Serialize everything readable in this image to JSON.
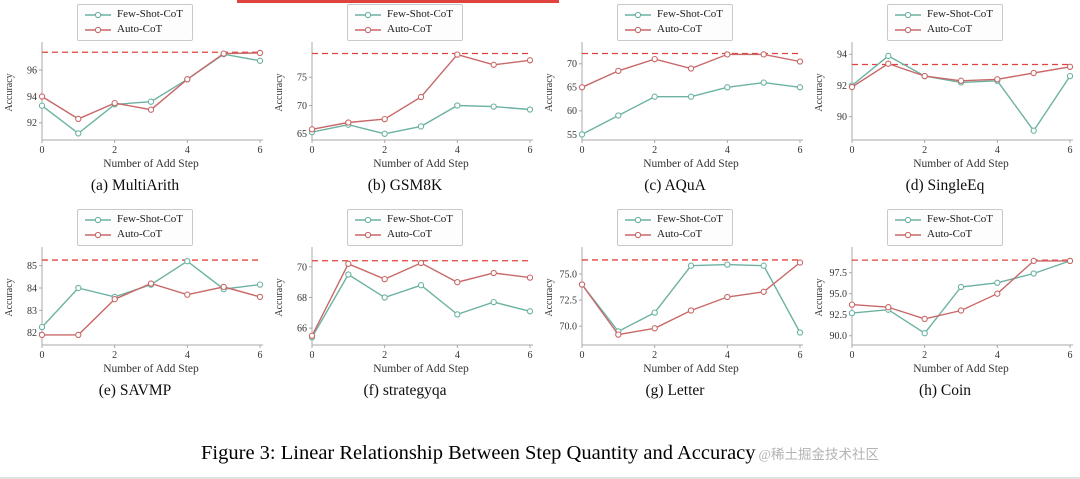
{
  "figure": {
    "caption": "Figure 3: Linear Relationship Between Step Quantity and Accuracy",
    "watermark": "@稀土掘金技术社区"
  },
  "axes": {
    "xlabel": "Number of Add Step",
    "ylabel": "Accuracy",
    "xticks": [
      0,
      2,
      4,
      6
    ]
  },
  "legend": {
    "series": [
      {
        "name": "Few-Shot-CoT",
        "color": "#6cb2a2"
      },
      {
        "name": "Auto-CoT",
        "color": "#c96868"
      }
    ]
  },
  "style": {
    "dashed_color": "#e0433c",
    "spine_color": "#a8a8a8",
    "topline_color": "#e0433c"
  },
  "chart_data": [
    {
      "type": "line",
      "title": "(a) MultiArith",
      "x": [
        0,
        1,
        2,
        3,
        4,
        5,
        6
      ],
      "ylim": [
        90.7,
        97.9
      ],
      "yticks": [
        92,
        94,
        96
      ],
      "ytick_labels": [
        "92",
        "94",
        "96"
      ],
      "dashed_line_y": 97.35,
      "series": [
        {
          "name": "Few-Shot-CoT",
          "values": [
            93.3,
            91.2,
            93.4,
            93.6,
            95.3,
            97.2,
            96.7
          ]
        },
        {
          "name": "Auto-CoT",
          "values": [
            94.0,
            92.3,
            93.5,
            93.0,
            95.3,
            97.25,
            97.3
          ]
        }
      ]
    },
    {
      "type": "line",
      "title": "(b) GSM8K",
      "x": [
        0,
        1,
        2,
        3,
        4,
        5,
        6
      ],
      "ylim": [
        63.9,
        80.7
      ],
      "yticks": [
        65,
        70,
        75
      ],
      "ytick_labels": [
        "65",
        "70",
        "75"
      ],
      "dashed_line_y": 79.2,
      "series": [
        {
          "name": "Few-Shot-CoT",
          "values": [
            65.3,
            66.6,
            65.0,
            66.3,
            70.0,
            69.8,
            69.3
          ]
        },
        {
          "name": "Auto-CoT",
          "values": [
            65.8,
            67.0,
            67.6,
            71.5,
            79.0,
            77.2,
            78.0
          ]
        }
      ]
    },
    {
      "type": "line",
      "title": "(c) AQuA",
      "x": [
        0,
        1,
        2,
        3,
        4,
        5,
        6
      ],
      "ylim": [
        53.8,
        74.0
      ],
      "yticks": [
        55,
        60,
        65,
        70
      ],
      "ytick_labels": [
        "55",
        "60",
        "65",
        "70"
      ],
      "dashed_line_y": 72.2,
      "series": [
        {
          "name": "Few-Shot-CoT",
          "values": [
            55.0,
            59.0,
            63.0,
            63.0,
            65.0,
            66.0,
            65.0
          ]
        },
        {
          "name": "Auto-CoT",
          "values": [
            65.0,
            68.5,
            71.0,
            69.0,
            72.0,
            72.0,
            70.5
          ]
        }
      ]
    },
    {
      "type": "line",
      "title": "(d) SingleEq",
      "x": [
        0,
        1,
        2,
        3,
        4,
        5,
        6
      ],
      "ylim": [
        88.5,
        94.6
      ],
      "yticks": [
        90,
        92,
        94
      ],
      "ytick_labels": [
        "90",
        "92",
        "94"
      ],
      "dashed_line_y": 93.35,
      "series": [
        {
          "name": "Few-Shot-CoT",
          "values": [
            92.0,
            93.9,
            92.6,
            92.2,
            92.3,
            89.1,
            92.6
          ]
        },
        {
          "name": "Auto-CoT",
          "values": [
            91.9,
            93.4,
            92.6,
            92.3,
            92.4,
            92.8,
            93.2
          ]
        }
      ]
    },
    {
      "type": "line",
      "title": "(e) SAVMP",
      "x": [
        0,
        1,
        2,
        3,
        4,
        5,
        6
      ],
      "ylim": [
        81.45,
        85.7
      ],
      "yticks": [
        82,
        83,
        84,
        85
      ],
      "ytick_labels": [
        "82",
        "83",
        "84",
        "85"
      ],
      "dashed_line_y": 85.25,
      "series": [
        {
          "name": "Few-Shot-CoT",
          "values": [
            82.25,
            84.0,
            83.6,
            84.15,
            85.2,
            83.95,
            84.15
          ]
        },
        {
          "name": "Auto-CoT",
          "values": [
            81.9,
            81.9,
            83.5,
            84.2,
            83.7,
            84.05,
            83.6
          ]
        }
      ]
    },
    {
      "type": "line",
      "title": "(f) strategyqa",
      "x": [
        0,
        1,
        2,
        3,
        4,
        5,
        6
      ],
      "ylim": [
        64.9,
        71.1
      ],
      "yticks": [
        66,
        68,
        70
      ],
      "ytick_labels": [
        "66",
        "68",
        "70"
      ],
      "dashed_line_y": 70.4,
      "series": [
        {
          "name": "Few-Shot-CoT",
          "values": [
            65.4,
            69.5,
            68.0,
            68.8,
            66.9,
            67.7,
            67.1
          ]
        },
        {
          "name": "Auto-CoT",
          "values": [
            65.5,
            70.2,
            69.2,
            70.25,
            69.0,
            69.6,
            69.3
          ]
        }
      ]
    },
    {
      "type": "line",
      "title": "(g) Letter",
      "x": [
        0,
        1,
        2,
        3,
        4,
        5,
        6
      ],
      "ylim": [
        68.2,
        77.3
      ],
      "yticks": [
        70.0,
        72.5,
        75.0
      ],
      "ytick_labels": [
        "70.0",
        "72.5",
        "75.0"
      ],
      "dashed_line_y": 76.35,
      "series": [
        {
          "name": "Few-Shot-CoT",
          "values": [
            74.0,
            69.5,
            71.3,
            75.8,
            75.9,
            75.8,
            69.4
          ]
        },
        {
          "name": "Auto-CoT",
          "values": [
            74.0,
            69.2,
            69.8,
            71.5,
            72.8,
            73.3,
            76.1
          ]
        }
      ]
    },
    {
      "type": "line",
      "title": "(h) Coin",
      "x": [
        0,
        1,
        2,
        3,
        4,
        5,
        6
      ],
      "ylim": [
        88.9,
        100.2
      ],
      "yticks": [
        90.0,
        92.5,
        95.0,
        97.5
      ],
      "ytick_labels": [
        "90.0",
        "92.5",
        "95.0",
        "97.5"
      ],
      "dashed_line_y": 99.0,
      "series": [
        {
          "name": "Few-Shot-CoT",
          "values": [
            92.7,
            93.1,
            90.3,
            95.8,
            96.3,
            97.4,
            98.9
          ]
        },
        {
          "name": "Auto-CoT",
          "values": [
            93.7,
            93.4,
            92.0,
            93.0,
            95.0,
            98.9,
            98.9
          ]
        }
      ]
    }
  ]
}
